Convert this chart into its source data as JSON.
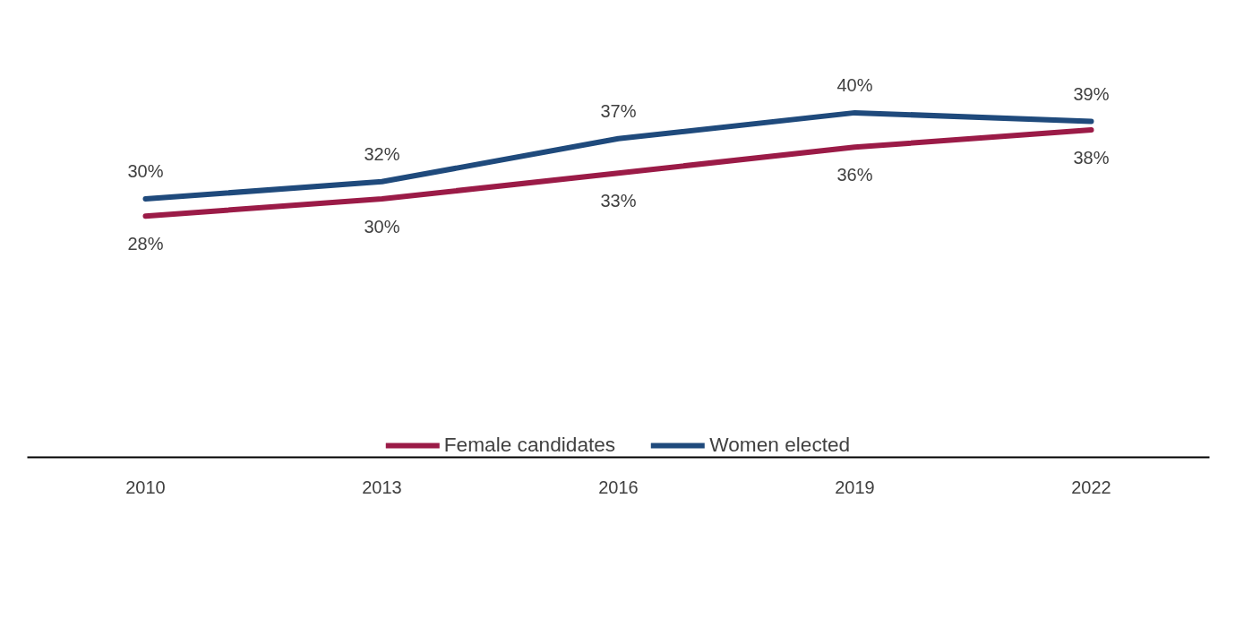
{
  "chart_data": {
    "type": "line",
    "categories": [
      "2010",
      "2013",
      "2016",
      "2019",
      "2022"
    ],
    "series": [
      {
        "name": "Female candidates",
        "color": "#9b1b47",
        "values": [
          28,
          30,
          33,
          36,
          38
        ],
        "value_labels": [
          "28%",
          "30%",
          "33%",
          "36%",
          "38%"
        ]
      },
      {
        "name": "Women elected",
        "color": "#1f4a7c",
        "values": [
          30,
          32,
          37,
          40,
          39
        ],
        "value_labels": [
          "30%",
          "32%",
          "37%",
          "40%",
          "39%"
        ]
      }
    ],
    "tick_labels": "x",
    "legend": "bottom",
    "line_style": "solid"
  }
}
